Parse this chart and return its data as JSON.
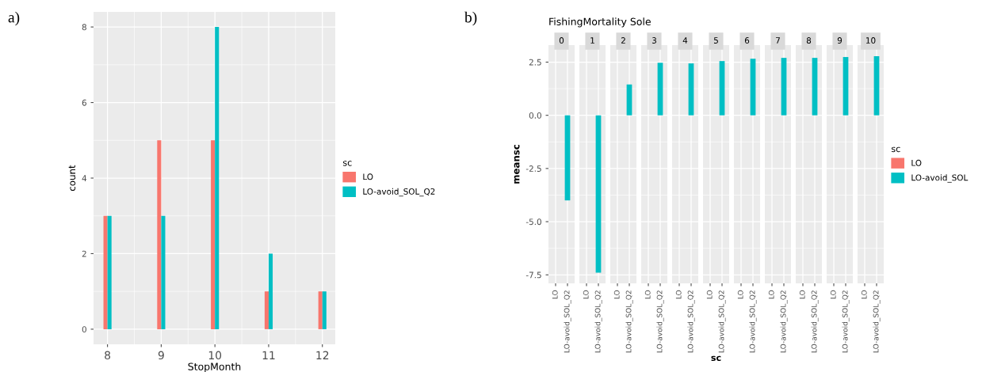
{
  "chart_data": [
    {
      "type": "bar",
      "annotations": [
        "a)"
      ],
      "xlabel": "StopMonth",
      "ylabel": "count",
      "legend_title": "sc",
      "legend": "right",
      "grid": true,
      "x": [
        8,
        9,
        10,
        11,
        12
      ],
      "xlim": [
        7.74,
        12.24
      ],
      "xticks": [
        8,
        9,
        10,
        11,
        12
      ],
      "ylim": [
        -0.4,
        8.4
      ],
      "yticks": [
        0,
        2,
        4,
        6,
        8
      ],
      "series": [
        {
          "name": "LO",
          "color": "#f8766d",
          "values": [
            3,
            5,
            5,
            1,
            1
          ]
        },
        {
          "name": "LO-avoid_SOL_Q2",
          "color": "#00bfc4",
          "values": [
            3,
            3,
            8,
            2,
            1
          ]
        }
      ]
    },
    {
      "type": "bar",
      "annotations": [
        "b)"
      ],
      "title": "FishingMortality Sole",
      "subtitle": "0",
      "ylabel": "meansc",
      "grid": true,
      "categories": [
        "LO",
        "LO-avoid_SOL_Q2"
      ],
      "ylim": [
        -7.9,
        3.3
      ],
      "yticks": [
        -7.5,
        {
          "value": -5,
          "label": "-5.0"
        },
        -2.5,
        {
          "value": 0,
          "label": "0.0"
        },
        2.5
      ],
      "colors": [
        "#f8766d",
        "#00bfc4"
      ],
      "values": [
        0,
        -4.0
      ]
    },
    {
      "type": "bar",
      "subtitle": "1",
      "grid": true,
      "tick_labels": "x",
      "categories": [
        "LO",
        "LO-avoid_SOL_Q2"
      ],
      "ylim": [
        -7.9,
        3.3
      ],
      "yticks": [
        -7.5,
        -5,
        -2.5,
        0,
        2.5
      ],
      "colors": [
        "#f8766d",
        "#00bfc4"
      ],
      "values": [
        0,
        -7.4
      ]
    },
    {
      "type": "bar",
      "subtitle": "2",
      "grid": true,
      "tick_labels": "x",
      "categories": [
        "LO",
        "LO-avoid_SOL_Q2"
      ],
      "ylim": [
        -7.9,
        3.3
      ],
      "yticks": [
        -7.5,
        -5,
        -2.5,
        0,
        2.5
      ],
      "colors": [
        "#f8766d",
        "#00bfc4"
      ],
      "values": [
        0,
        1.45
      ]
    },
    {
      "type": "bar",
      "subtitle": "3",
      "grid": true,
      "tick_labels": "x",
      "categories": [
        "LO",
        "LO-avoid_SOL_Q2"
      ],
      "ylim": [
        -7.9,
        3.3
      ],
      "yticks": [
        -7.5,
        -5,
        -2.5,
        0,
        2.5
      ],
      "colors": [
        "#f8766d",
        "#00bfc4"
      ],
      "values": [
        0,
        2.47
      ]
    },
    {
      "type": "bar",
      "subtitle": "4",
      "grid": true,
      "tick_labels": "x",
      "categories": [
        "LO",
        "LO-avoid_SOL_Q2"
      ],
      "ylim": [
        -7.9,
        3.3
      ],
      "yticks": [
        -7.5,
        -5,
        -2.5,
        0,
        2.5
      ],
      "colors": [
        "#f8766d",
        "#00bfc4"
      ],
      "values": [
        0,
        2.44
      ]
    },
    {
      "type": "bar",
      "subtitle": "5",
      "xlabel": "sc",
      "grid": true,
      "tick_labels": "x",
      "categories": [
        "LO",
        "LO-avoid_SOL_Q2"
      ],
      "ylim": [
        -7.9,
        3.3
      ],
      "yticks": [
        -7.5,
        -5,
        -2.5,
        0,
        2.5
      ],
      "colors": [
        "#f8766d",
        "#00bfc4"
      ],
      "values": [
        0,
        2.55
      ]
    },
    {
      "type": "bar",
      "subtitle": "6",
      "grid": true,
      "tick_labels": "x",
      "categories": [
        "LO",
        "LO-avoid_SOL_Q2"
      ],
      "ylim": [
        -7.9,
        3.3
      ],
      "yticks": [
        -7.5,
        -5,
        -2.5,
        0,
        2.5
      ],
      "colors": [
        "#f8766d",
        "#00bfc4"
      ],
      "values": [
        0,
        2.66
      ]
    },
    {
      "type": "bar",
      "subtitle": "7",
      "grid": true,
      "tick_labels": "x",
      "categories": [
        "LO",
        "LO-avoid_SOL_Q2"
      ],
      "ylim": [
        -7.9,
        3.3
      ],
      "yticks": [
        -7.5,
        -5,
        -2.5,
        0,
        2.5
      ],
      "colors": [
        "#f8766d",
        "#00bfc4"
      ],
      "values": [
        0,
        2.7
      ]
    },
    {
      "type": "bar",
      "subtitle": "8",
      "grid": true,
      "tick_labels": "x",
      "categories": [
        "LO",
        "LO-avoid_SOL_Q2"
      ],
      "ylim": [
        -7.9,
        3.3
      ],
      "yticks": [
        -7.5,
        -5,
        -2.5,
        0,
        2.5
      ],
      "colors": [
        "#f8766d",
        "#00bfc4"
      ],
      "values": [
        0,
        2.7
      ]
    },
    {
      "type": "bar",
      "subtitle": "9",
      "grid": true,
      "tick_labels": "x",
      "categories": [
        "LO",
        "LO-avoid_SOL_Q2"
      ],
      "ylim": [
        -7.9,
        3.3
      ],
      "yticks": [
        -7.5,
        -5,
        -2.5,
        0,
        2.5
      ],
      "colors": [
        "#f8766d",
        "#00bfc4"
      ],
      "values": [
        0,
        2.74
      ]
    },
    {
      "type": "bar",
      "subtitle": "10",
      "grid": true,
      "tick_labels": "x",
      "legend": "right",
      "legend_title": "sc",
      "categories": [
        "LO",
        "LO-avoid_SOL_Q2"
      ],
      "ylim": [
        -7.9,
        3.3
      ],
      "yticks": [
        -7.5,
        -5,
        -2.5,
        0,
        2.5
      ],
      "series": [
        {
          "name": "LO",
          "color": "#f8766d",
          "values": [
            0,
            null
          ]
        },
        {
          "name": "LO-avoid_SOL",
          "color": "#00bfc4",
          "values": [
            null,
            2.78
          ]
        }
      ]
    }
  ]
}
